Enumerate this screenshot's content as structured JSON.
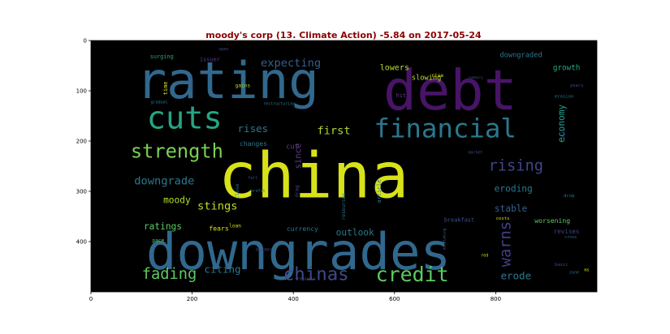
{
  "chart_data": {
    "type": "wordcloud",
    "title": "moody's corp (13. Climate Action) -5.84 on 2017-05-24",
    "title_color": "#8b0000",
    "background": "#000000",
    "xlim": [
      0,
      1000
    ],
    "ylim": [
      500,
      0
    ],
    "x_ticks": [
      "0",
      "200",
      "400",
      "600",
      "800"
    ],
    "y_ticks": [
      "0",
      "100",
      "200",
      "300",
      "400"
    ],
    "words": [
      {
        "text": "china",
        "x": 440,
        "y": 270,
        "size": 125,
        "color": "#d8e219",
        "rotate": 0
      },
      {
        "text": "debt",
        "x": 710,
        "y": 100,
        "size": 110,
        "color": "#481467",
        "rotate": 0
      },
      {
        "text": "rating",
        "x": 270,
        "y": 80,
        "size": 100,
        "color": "#31688e",
        "rotate": 0
      },
      {
        "text": "downgrades",
        "x": 410,
        "y": 420,
        "size": 100,
        "color": "#31688e",
        "rotate": 0
      },
      {
        "text": "cuts",
        "x": 185,
        "y": 155,
        "size": 62,
        "color": "#25a584",
        "rotate": 0
      },
      {
        "text": "financial",
        "x": 700,
        "y": 175,
        "size": 52,
        "color": "#2a788e",
        "rotate": 0
      },
      {
        "text": "strength",
        "x": 170,
        "y": 220,
        "size": 38,
        "color": "#7ad151",
        "rotate": 0
      },
      {
        "text": "credit",
        "x": 635,
        "y": 465,
        "size": 40,
        "color": "#5ec962",
        "rotate": 0
      },
      {
        "text": "chinas",
        "x": 445,
        "y": 465,
        "size": 36,
        "color": "#3e4989",
        "rotate": 0
      },
      {
        "text": "rising",
        "x": 840,
        "y": 250,
        "size": 30,
        "color": "#414487",
        "rotate": 0
      },
      {
        "text": "fading",
        "x": 155,
        "y": 465,
        "size": 30,
        "color": "#5ec962",
        "rotate": 0
      },
      {
        "text": "warns",
        "x": 820,
        "y": 405,
        "size": 30,
        "color": "#433e85",
        "rotate": -90
      },
      {
        "text": "downgrade",
        "x": 145,
        "y": 280,
        "size": 22,
        "color": "#2a788e",
        "rotate": 0
      },
      {
        "text": "stings",
        "x": 250,
        "y": 330,
        "size": 22,
        "color": "#bddf26",
        "rotate": 0
      },
      {
        "text": "expecting",
        "x": 395,
        "y": 45,
        "size": 22,
        "color": "#355f8d",
        "rotate": 0
      },
      {
        "text": "first",
        "x": 480,
        "y": 180,
        "size": 22,
        "color": "#addc30",
        "rotate": 0
      },
      {
        "text": "rises",
        "x": 320,
        "y": 175,
        "size": 20,
        "color": "#2a788e",
        "rotate": 0
      },
      {
        "text": "erode",
        "x": 840,
        "y": 468,
        "size": 20,
        "color": "#2a788e",
        "rotate": 0
      },
      {
        "text": "citing",
        "x": 260,
        "y": 455,
        "size": 20,
        "color": "#2a788e",
        "rotate": 0
      },
      {
        "text": "eroding",
        "x": 835,
        "y": 295,
        "size": 18,
        "color": "#2a788e",
        "rotate": 0
      },
      {
        "text": "ratings",
        "x": 142,
        "y": 370,
        "size": 18,
        "color": "#5ec962",
        "rotate": 0
      },
      {
        "text": "moody",
        "x": 170,
        "y": 318,
        "size": 18,
        "color": "#b5de2b",
        "rotate": 0
      },
      {
        "text": "outlook",
        "x": 522,
        "y": 382,
        "size": 18,
        "color": "#2a788e",
        "rotate": 0
      },
      {
        "text": "stable",
        "x": 830,
        "y": 335,
        "size": 18,
        "color": "#355f8d",
        "rotate": 0
      },
      {
        "text": "economy",
        "x": 930,
        "y": 165,
        "size": 18,
        "color": "#1f9e89",
        "rotate": -90
      },
      {
        "text": "since",
        "x": 410,
        "y": 230,
        "size": 17,
        "color": "#5b3d88",
        "rotate": -90
      },
      {
        "text": "lowers",
        "x": 600,
        "y": 55,
        "size": 16,
        "color": "#b5de2b",
        "rotate": 0
      },
      {
        "text": "slowing",
        "x": 663,
        "y": 75,
        "size": 14,
        "color": "#b5de2b",
        "rotate": 0
      },
      {
        "text": "growth",
        "x": 940,
        "y": 55,
        "size": 15,
        "color": "#25a584",
        "rotate": 0
      },
      {
        "text": "downgraded",
        "x": 850,
        "y": 30,
        "size": 14,
        "color": "#2a788e",
        "rotate": 0
      },
      {
        "text": "cut",
        "x": 398,
        "y": 212,
        "size": 14,
        "color": "#5b3d88",
        "rotate": 0
      },
      {
        "text": "changes",
        "x": 321,
        "y": 205,
        "size": 13,
        "color": "#2a788e",
        "rotate": 0
      },
      {
        "text": "fears",
        "x": 253,
        "y": 373,
        "size": 13,
        "color": "#d8e219",
        "rotate": 0
      },
      {
        "text": "currency",
        "x": 418,
        "y": 374,
        "size": 13,
        "color": "#2a788e",
        "rotate": 0
      },
      {
        "text": "worsening",
        "x": 912,
        "y": 358,
        "size": 13,
        "color": "#5ec962",
        "rotate": 0
      },
      {
        "text": "revises",
        "x": 940,
        "y": 380,
        "size": 12,
        "color": "#433e85",
        "rotate": 0
      },
      {
        "text": "breakfast",
        "x": 728,
        "y": 357,
        "size": 11,
        "color": "#3b528b",
        "rotate": 0
      },
      {
        "text": "hit",
        "x": 613,
        "y": 110,
        "size": 11,
        "color": "#5b3d88",
        "rotate": 0
      },
      {
        "text": "surging",
        "x": 140,
        "y": 32,
        "size": 11,
        "color": "#25a584",
        "rotate": 0
      },
      {
        "text": "issuer",
        "x": 235,
        "y": 38,
        "size": 11,
        "color": "#5b3d88",
        "rotate": 0
      },
      {
        "text": "gains",
        "x": 300,
        "y": 90,
        "size": 10,
        "color": "#addc30",
        "rotate": 0
      },
      {
        "text": "rise",
        "x": 685,
        "y": 70,
        "size": 10,
        "color": "#d8e219",
        "rotate": 0
      },
      {
        "text": "loan",
        "x": 285,
        "y": 369,
        "size": 10,
        "color": "#d8e219",
        "rotate": 0
      },
      {
        "text": "pace",
        "x": 133,
        "y": 398,
        "size": 10,
        "color": "#5ec962",
        "rotate": 0
      },
      {
        "text": "border",
        "x": 342,
        "y": 417,
        "size": 9,
        "color": "#3e4989",
        "rotate": 0
      },
      {
        "text": "reports",
        "x": 426,
        "y": 475,
        "size": 9,
        "color": "#3e4989",
        "rotate": 0
      },
      {
        "text": "costs",
        "x": 814,
        "y": 355,
        "size": 9,
        "color": "#d8e219",
        "rotate": 0
      },
      {
        "text": "drop",
        "x": 945,
        "y": 310,
        "size": 9,
        "color": "#2a788e",
        "rotate": 0
      },
      {
        "text": "basic",
        "x": 930,
        "y": 447,
        "size": 9,
        "color": "#5b3d88",
        "rotate": 0
      },
      {
        "text": "zone",
        "x": 955,
        "y": 462,
        "size": 8,
        "color": "#31688e",
        "rotate": 0
      },
      {
        "text": "ms",
        "x": 980,
        "y": 457,
        "size": 8,
        "color": "#d8e219",
        "rotate": 0
      },
      {
        "text": "red",
        "x": 778,
        "y": 428,
        "size": 8,
        "color": "#d8e219",
        "rotate": 0
      },
      {
        "text": "cross",
        "x": 948,
        "y": 392,
        "size": 8,
        "color": "#31688e",
        "rotate": 0
      },
      {
        "text": "years",
        "x": 960,
        "y": 90,
        "size": 9,
        "color": "#3e4989",
        "rotate": 0
      },
      {
        "text": "erosion",
        "x": 935,
        "y": 112,
        "size": 9,
        "color": "#2a788e",
        "rotate": 0
      },
      {
        "text": "summary",
        "x": 760,
        "y": 75,
        "size": 7,
        "color": "#3e4989",
        "rotate": 0
      },
      {
        "text": "market",
        "x": 760,
        "y": 223,
        "size": 8,
        "color": "#3e4989",
        "rotate": 0
      },
      {
        "text": "fall",
        "x": 320,
        "y": 274,
        "size": 8,
        "color": "#3e4989",
        "rotate": 0
      },
      {
        "text": "profit",
        "x": 330,
        "y": 300,
        "size": 8,
        "color": "#2a788e",
        "rotate": 0
      },
      {
        "text": "open",
        "x": 262,
        "y": 18,
        "size": 8,
        "color": "#3e4989",
        "rotate": 0
      },
      {
        "text": "gradual",
        "x": 135,
        "y": 123,
        "size": 8,
        "color": "#2a788e",
        "rotate": 0
      },
      {
        "text": "restructuring",
        "x": 372,
        "y": 127,
        "size": 8,
        "color": "#2a788e",
        "rotate": 0
      },
      {
        "text": "time",
        "x": 148,
        "y": 95,
        "size": 11,
        "color": "#d8e219",
        "rotate": -90
      },
      {
        "text": "tension",
        "x": 200,
        "y": 85,
        "size": 7,
        "color": "#3e4989",
        "rotate": -90
      },
      {
        "text": "close",
        "x": 290,
        "y": 300,
        "size": 10,
        "color": "#2a788e",
        "rotate": -90
      },
      {
        "text": "drag",
        "x": 408,
        "y": 300,
        "size": 10,
        "color": "#3e4989",
        "rotate": -90
      },
      {
        "text": "resources",
        "x": 500,
        "y": 330,
        "size": 10,
        "color": "#2a788e",
        "rotate": -90
      },
      {
        "text": "article",
        "x": 570,
        "y": 300,
        "size": 11,
        "color": "#2a788e",
        "rotate": -90
      },
      {
        "text": "escalating",
        "x": 700,
        "y": 395,
        "size": 7,
        "color": "#31688e",
        "rotate": -90
      },
      {
        "text": "bite",
        "x": 935,
        "y": 185,
        "size": 8,
        "color": "#3e4989",
        "rotate": -90
      }
    ]
  }
}
